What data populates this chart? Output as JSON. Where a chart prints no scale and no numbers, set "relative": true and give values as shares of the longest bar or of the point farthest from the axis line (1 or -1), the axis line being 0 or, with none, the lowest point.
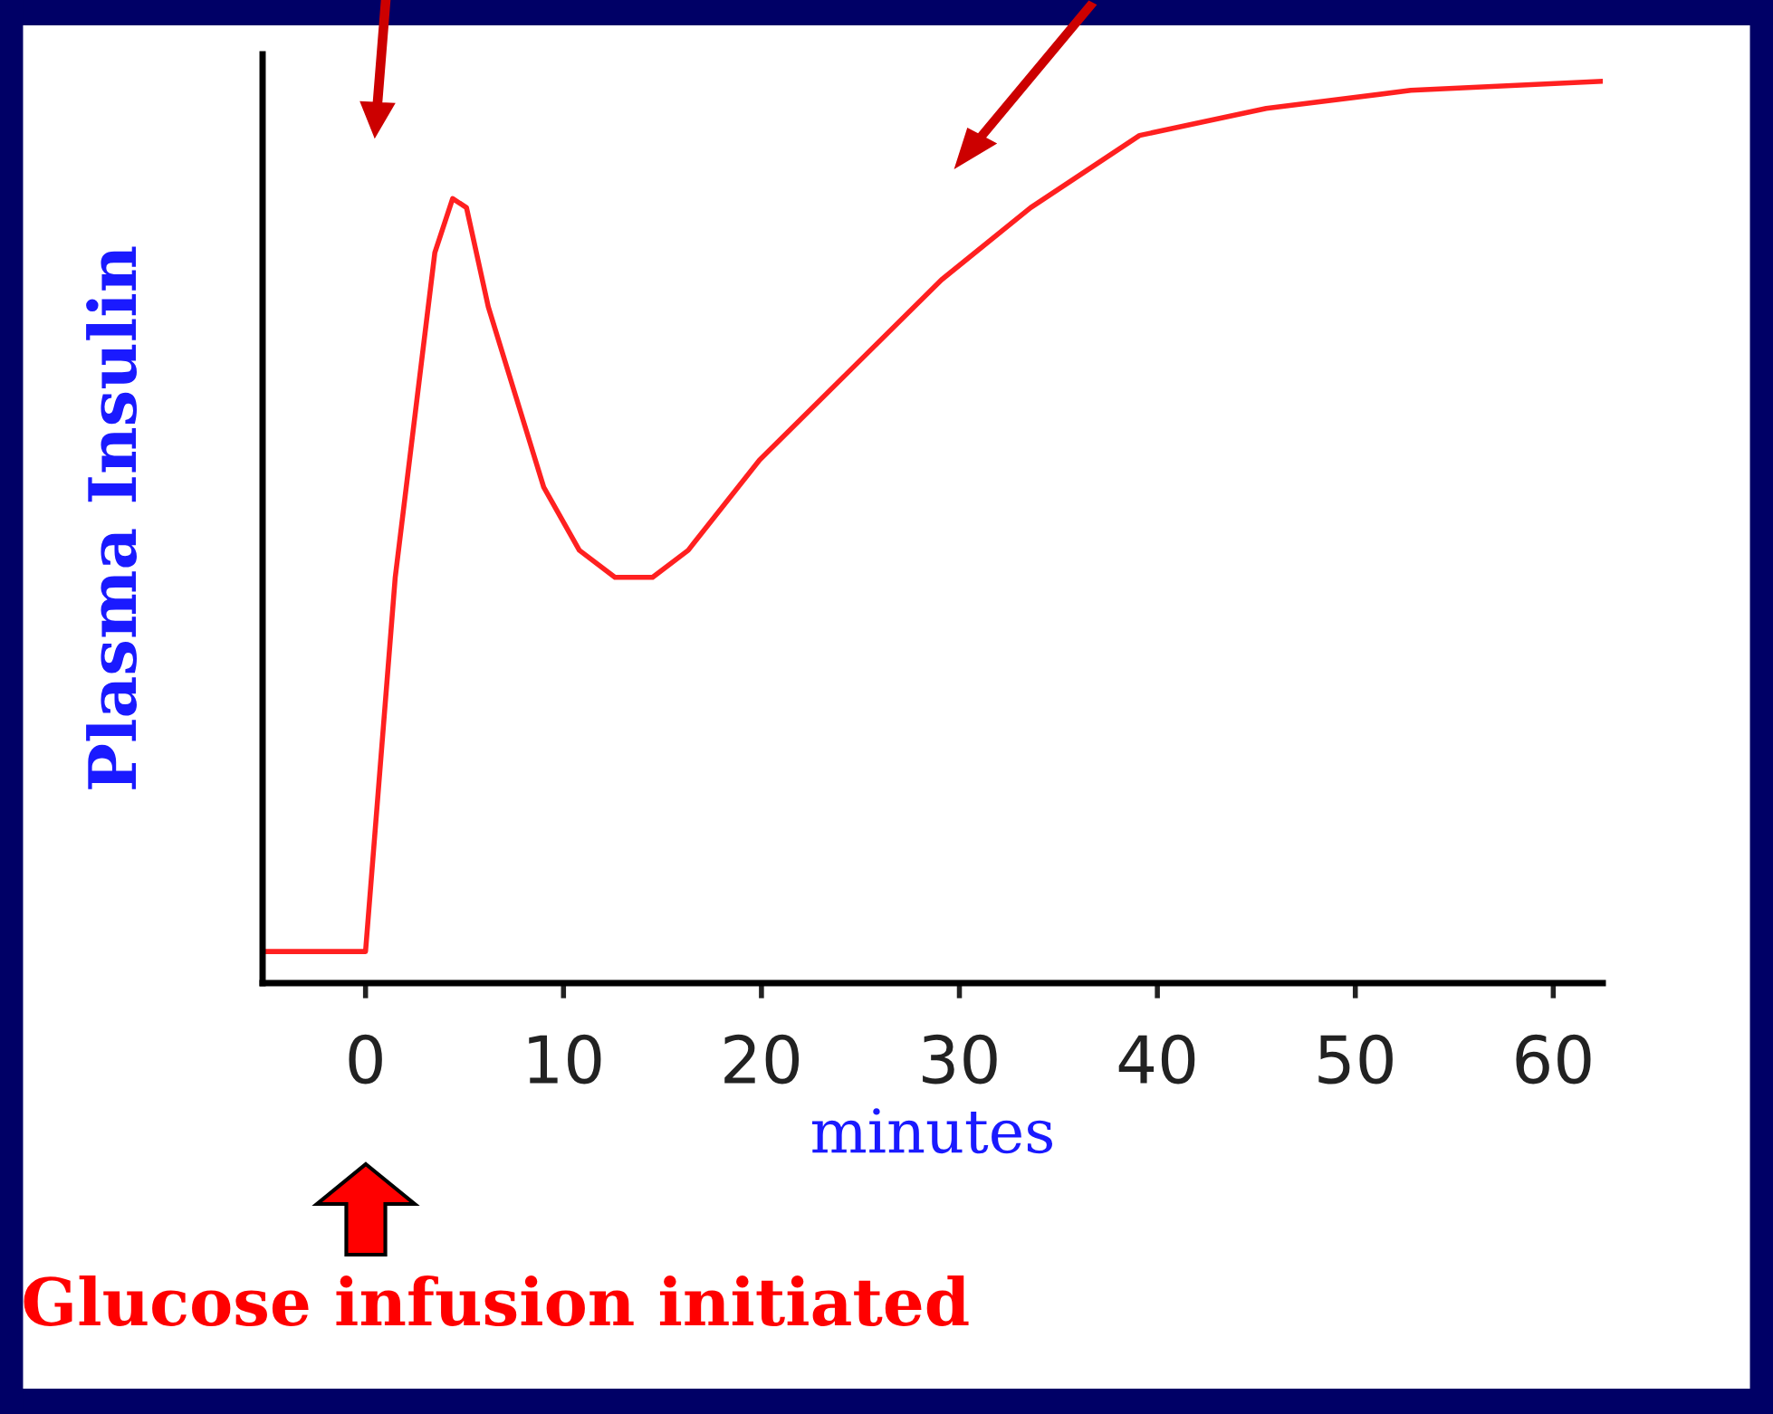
{
  "chart_data": {
    "type": "line",
    "relative": true,
    "xlabel": "minutes",
    "ylabel": "Plasma Insulin",
    "annotations": [
      "Glucose infusion initiated"
    ],
    "x": [
      -5.2,
      0,
      1.5,
      3.5,
      4.4,
      5.1,
      6.2,
      7.6,
      9.0,
      10.8,
      12.6,
      14.5,
      16.3,
      19.9,
      24.5,
      29.1,
      33.6,
      39.1,
      45.5,
      52.8,
      62.4
    ],
    "series": [
      {
        "color": "#ff2020",
        "values": [
          0.035,
          0.035,
          0.45,
          0.81,
          0.87,
          0.86,
          0.75,
          0.65,
          0.55,
          0.48,
          0.45,
          0.45,
          0.48,
          0.58,
          0.68,
          0.78,
          0.86,
          0.94,
          0.97,
          0.99,
          1.0
        ]
      }
    ],
    "xlim": [
      -5.2,
      62.5
    ],
    "xticks": [
      0,
      10,
      20,
      30,
      40,
      50,
      60
    ],
    "grid": false,
    "legend": false,
    "marker": "none",
    "line_style": "solid"
  }
}
